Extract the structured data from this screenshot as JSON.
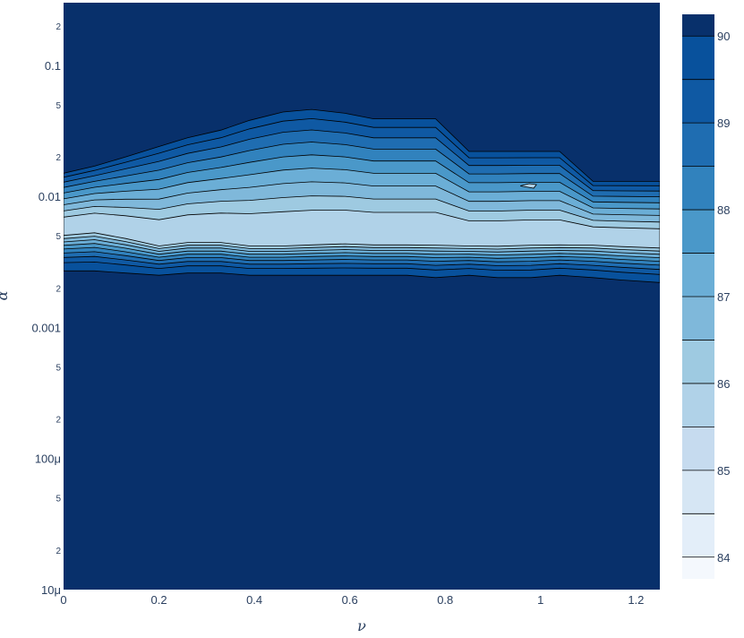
{
  "chart_data": {
    "type": "contour",
    "title": "",
    "xlabel": "ν",
    "ylabel": "α",
    "x_axis": {
      "scale": "linear",
      "range": [
        0,
        1.25
      ],
      "ticks": [
        0,
        0.2,
        0.4,
        0.6,
        0.8,
        1,
        1.2
      ],
      "tick_labels": [
        "0",
        "0.2",
        "0.4",
        "0.6",
        "0.8",
        "1",
        "1.2"
      ]
    },
    "y_axis": {
      "scale": "log",
      "range": [
        1e-05,
        0.3
      ],
      "major_ticks": [
        1e-05,
        0.0001,
        0.001,
        0.01,
        0.1
      ],
      "major_labels": [
        "10μ",
        "100μ",
        "0.001",
        "0.01",
        "0.1"
      ],
      "minor_ticks": [
        2e-05,
        5e-05,
        0.0002,
        0.0005,
        0.002,
        0.005,
        0.02,
        0.05,
        0.2
      ],
      "minor_labels": [
        "2",
        "5",
        "2",
        "5",
        "2",
        "5",
        "2",
        "5",
        "2"
      ]
    },
    "colorbar": {
      "range": [
        83.75,
        90.25
      ],
      "ticks": [
        84,
        85,
        86,
        87,
        88,
        89,
        90
      ],
      "tick_labels": [
        "84",
        "85",
        "86",
        "87",
        "88",
        "89",
        "90"
      ],
      "levels": [
        84,
        84.5,
        85,
        85.5,
        86,
        86.5,
        87,
        87.5,
        88,
        88.5,
        89,
        89.5,
        90
      ],
      "colors": [
        "#f4f8fd",
        "#e3eef9",
        "#d6e6f4",
        "#c6dbef",
        "#b0d2e8",
        "#9ecae1",
        "#7fb8da",
        "#6baed6",
        "#4a98c9",
        "#3182bd",
        "#1f6db1",
        "#0f59a3",
        "#08519c",
        "#08306b"
      ]
    },
    "z_description": "contour of metric over nu (x) and alpha (y, log)",
    "grid_x": [
      0,
      0.065,
      0.13,
      0.2,
      0.26,
      0.33,
      0.39,
      0.46,
      0.52,
      0.59,
      0.65,
      0.72,
      0.78,
      0.85,
      0.91,
      0.98,
      1.04,
      1.11,
      1.17,
      1.25
    ],
    "bands": {
      "bottom_edge_alpha": [
        0.0027,
        0.0027,
        0.0026,
        0.0025,
        0.0026,
        0.0026,
        0.0025,
        0.0025,
        0.0025,
        0.0025,
        0.0025,
        0.0025,
        0.0024,
        0.0025,
        0.0024,
        0.0024,
        0.0025,
        0.0024,
        0.0023,
        0.0022
      ],
      "plateau_bottom_alpha": [
        0.0055,
        0.0058,
        0.0052,
        0.0045,
        0.0048,
        0.0048,
        0.0045,
        0.0045,
        0.0046,
        0.0047,
        0.0046,
        0.0046,
        0.0046,
        0.0045,
        0.0045,
        0.0046,
        0.0046,
        0.0046,
        0.0045,
        0.0044
      ],
      "top_edge_alpha": [
        0.015,
        0.017,
        0.02,
        0.024,
        0.028,
        0.032,
        0.038,
        0.044,
        0.046,
        0.043,
        0.039,
        0.039,
        0.039,
        0.022,
        0.022,
        0.022,
        0.022,
        0.013,
        0.013,
        0.013
      ]
    }
  }
}
